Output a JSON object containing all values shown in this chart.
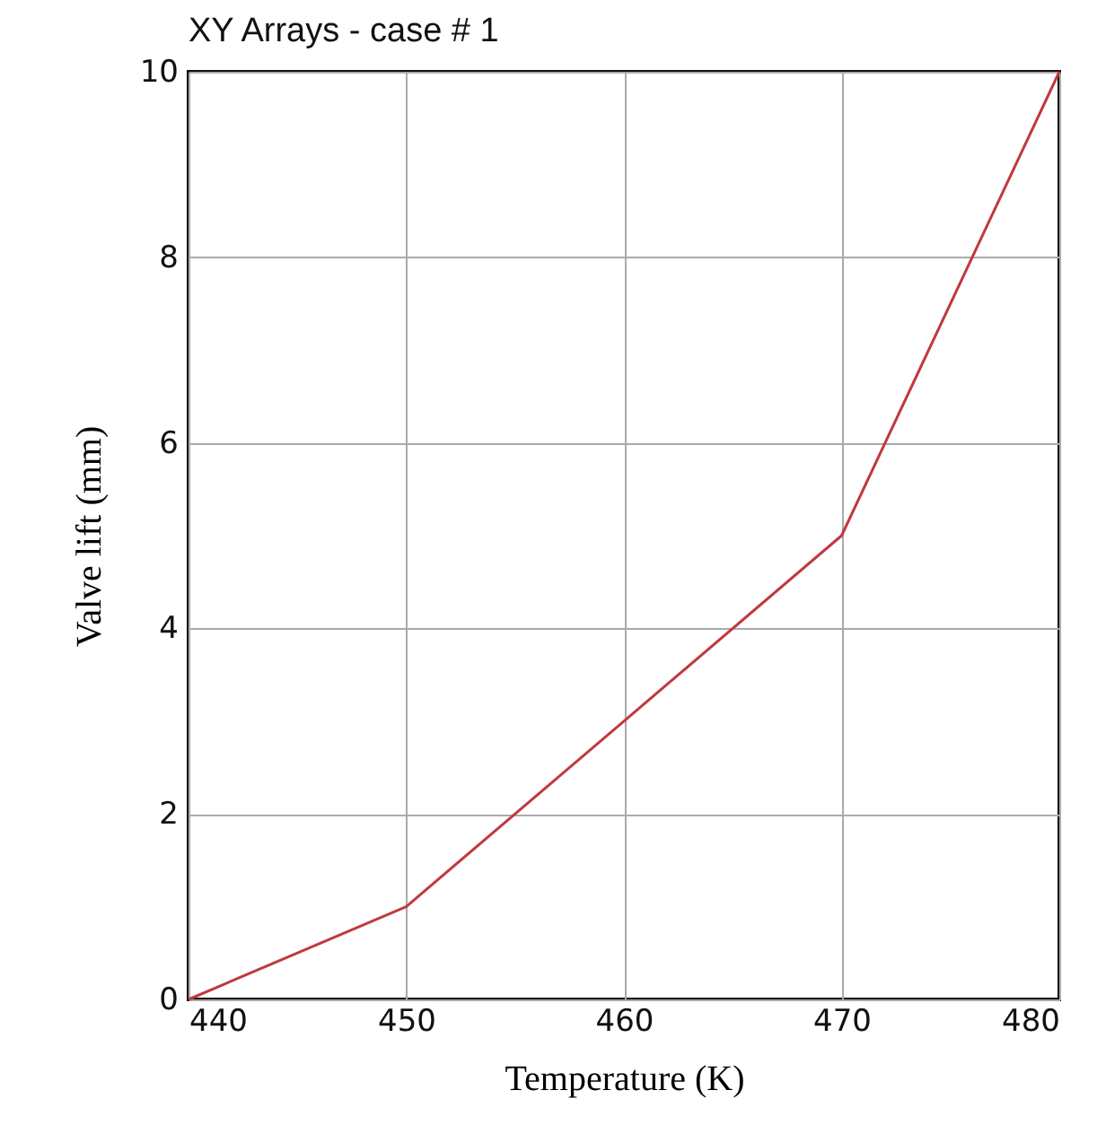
{
  "chart_data": {
    "type": "line",
    "title": "XY Arrays - case # 1",
    "xlabel": "Temperature (K)",
    "ylabel": "Valve lift (mm)",
    "x": [
      440,
      450,
      460,
      470,
      480
    ],
    "series": [
      {
        "color": "#c0393f",
        "values": [
          0,
          1,
          3,
          5,
          10
        ]
      }
    ],
    "xlim": [
      440,
      480
    ],
    "xticks": [
      440,
      450,
      460,
      470,
      480
    ],
    "ylim": [
      0,
      10
    ],
    "yticks": [
      0,
      2,
      4,
      6,
      8,
      10
    ],
    "grid": true,
    "legend": false,
    "marker": "none",
    "line_style": "solid"
  }
}
